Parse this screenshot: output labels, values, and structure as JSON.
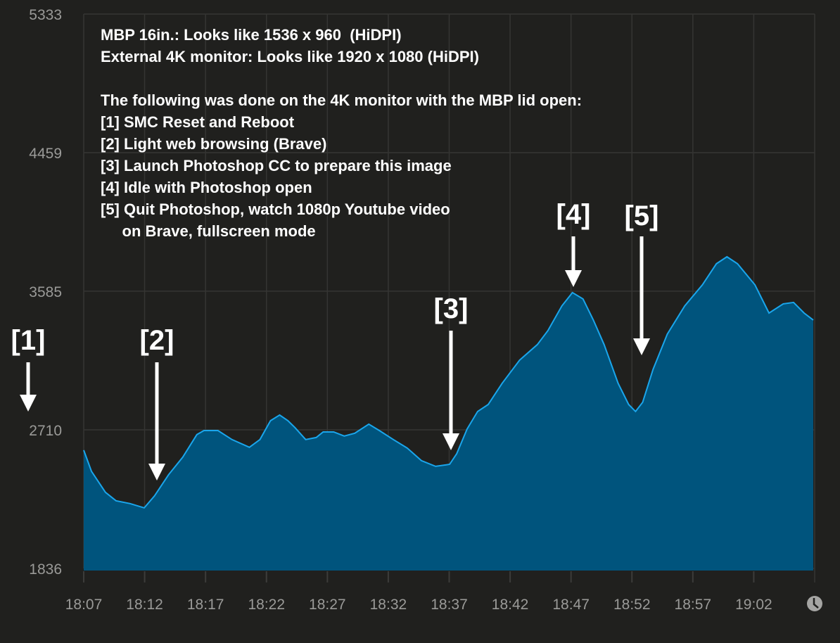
{
  "chart_data": {
    "type": "area",
    "title": "",
    "xlabel": "",
    "ylabel": "",
    "ylim": [
      1836,
      5333
    ],
    "xlim": [
      "18:07",
      "19:07"
    ],
    "y_ticks": [
      "5333",
      "4459",
      "3585",
      "2710",
      "1836"
    ],
    "x_ticks": [
      "18:07",
      "18:12",
      "18:17",
      "18:22",
      "18:27",
      "18:32",
      "18:37",
      "18:42",
      "18:47",
      "18:52",
      "18:57",
      "19:02"
    ],
    "grid": true,
    "colors": {
      "fill": "#00547d",
      "line": "#1aa6ec",
      "background": "#20201e",
      "grid": "#353533"
    },
    "x_axis_icon": "clock-icon",
    "x": [
      "18:07:00",
      "18:07:38",
      "18:08:47",
      "18:09:39",
      "18:10:48",
      "18:11:58",
      "18:12:49",
      "18:13:58",
      "18:15:08",
      "18:16:17",
      "18:16:52",
      "18:18:01",
      "18:19:10",
      "18:20:36",
      "18:21:28",
      "18:22:20",
      "18:23:05",
      "18:23:46",
      "18:24:21",
      "18:25:13",
      "18:26:05",
      "18:26:39",
      "18:27:31",
      "18:28:23",
      "18:29:15",
      "18:30:24",
      "18:31:16",
      "18:32:25",
      "18:33:34",
      "18:34:43",
      "18:35:53",
      "18:37:02",
      "18:37:37",
      "18:38:28",
      "18:39:20",
      "18:40:12",
      "18:41:21",
      "18:42:47",
      "18:44:14",
      "18:45:06",
      "18:46:15",
      "18:47:07",
      "18:47:59",
      "18:48:50",
      "18:49:43",
      "18:50:52",
      "18:51:44",
      "18:52:18",
      "18:52:53",
      "18:53:44",
      "18:54:54",
      "18:56:20",
      "18:57:47",
      "18:58:56",
      "18:59:48",
      "19:00:40",
      "19:02:06",
      "19:03:15",
      "19:04:25",
      "19:05:16",
      "19:06:08",
      "19:06:53"
    ],
    "values": [
      2582,
      2449,
      2316,
      2263,
      2245,
      2218,
      2294,
      2427,
      2538,
      2680,
      2706,
      2706,
      2649,
      2600,
      2649,
      2768,
      2804,
      2768,
      2724,
      2649,
      2662,
      2697,
      2697,
      2671,
      2689,
      2746,
      2706,
      2649,
      2595,
      2516,
      2480,
      2493,
      2560,
      2715,
      2826,
      2870,
      3004,
      3150,
      3248,
      3336,
      3492,
      3576,
      3536,
      3403,
      3248,
      3004,
      2870,
      2826,
      2884,
      3092,
      3314,
      3492,
      3625,
      3758,
      3802,
      3758,
      3625,
      3447,
      3505,
      3514,
      3447,
      3403
    ]
  },
  "annotation": {
    "lines": [
      "MBP 16in.: Looks like 1536 x 960  (HiDPI)",
      "External 4K monitor: Looks like 1920 x 1080 (HiDPI)",
      "",
      "The following was done on the 4K monitor with the MBP lid open:",
      "[1] SMC Reset and Reboot",
      "[2] Light web browsing (Brave)",
      "[3] Launch Photoshop CC to prepare this image",
      "[4] Idle with Photoshop open",
      "[5] Quit Photoshop, watch 1080p Youtube video",
      "     on Brave, fullscreen mode"
    ],
    "markers": [
      "[1]",
      "[2]",
      "[3]",
      "[4]",
      "[5]"
    ]
  }
}
